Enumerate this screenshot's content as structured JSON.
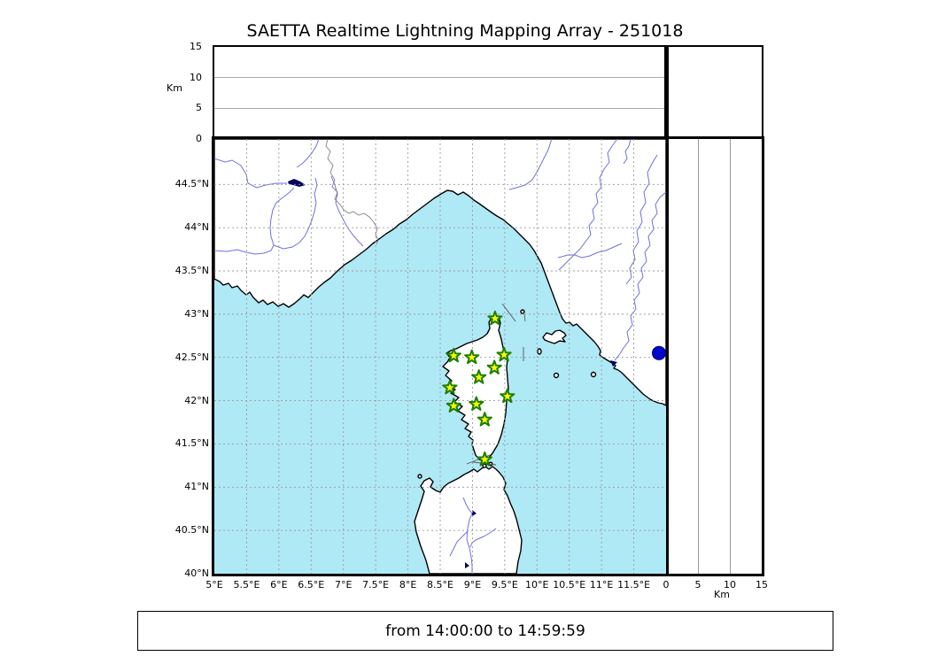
{
  "title": "SAETTA Realtime Lightning Mapping Array - 251018",
  "footer": "from 14:00:00 to 14:59:59",
  "altitude_axis": {
    "unit_label": "Km",
    "ticks": [
      0,
      5,
      10,
      15
    ],
    "max": 15
  },
  "map": {
    "lon_range": [
      5.0,
      12.0
    ],
    "lat_range": [
      40.0,
      45.025
    ],
    "lon_ticks": [
      {
        "value": 5.0,
        "label": "5°E"
      },
      {
        "value": 5.5,
        "label": "5.5°E"
      },
      {
        "value": 6.0,
        "label": "6°E"
      },
      {
        "value": 6.5,
        "label": "6.5°E"
      },
      {
        "value": 7.0,
        "label": "7°E"
      },
      {
        "value": 7.5,
        "label": "7.5°E"
      },
      {
        "value": 8.0,
        "label": "8°E"
      },
      {
        "value": 8.5,
        "label": "8.5°E"
      },
      {
        "value": 9.0,
        "label": "9°E"
      },
      {
        "value": 9.5,
        "label": "9.5°E"
      },
      {
        "value": 10.0,
        "label": "10°E"
      },
      {
        "value": 10.5,
        "label": "10.5°E"
      },
      {
        "value": 11.0,
        "label": "11°E"
      },
      {
        "value": 11.5,
        "label": "11.5°E"
      }
    ],
    "lat_ticks": [
      {
        "value": 44.5,
        "label": "44.5°N"
      },
      {
        "value": 44.0,
        "label": "44°N"
      },
      {
        "value": 43.5,
        "label": "43.5°N"
      },
      {
        "value": 43.0,
        "label": "43°N"
      },
      {
        "value": 42.5,
        "label": "42.5°N"
      },
      {
        "value": 42.0,
        "label": "42°N"
      },
      {
        "value": 41.5,
        "label": "41.5°N"
      },
      {
        "value": 41.0,
        "label": "41°N"
      },
      {
        "value": 40.5,
        "label": "40.5°N"
      },
      {
        "value": 40.0,
        "label": "40°N"
      }
    ],
    "stations": [
      {
        "lon": 9.35,
        "lat": 42.95
      },
      {
        "lon": 8.71,
        "lat": 42.52
      },
      {
        "lon": 8.99,
        "lat": 42.5
      },
      {
        "lon": 9.49,
        "lat": 42.53
      },
      {
        "lon": 9.34,
        "lat": 42.38
      },
      {
        "lon": 9.1,
        "lat": 42.27
      },
      {
        "lon": 8.65,
        "lat": 42.15
      },
      {
        "lon": 9.54,
        "lat": 42.05
      },
      {
        "lon": 8.71,
        "lat": 41.94
      },
      {
        "lon": 9.06,
        "lat": 41.96
      },
      {
        "lon": 9.19,
        "lat": 41.78
      },
      {
        "lon": 9.19,
        "lat": 41.32
      }
    ],
    "event_dot": {
      "lon": 11.89,
      "lat": 42.55
    },
    "colors": {
      "sea": "#afe9f5",
      "land": "#ffffff",
      "coast": "#000000",
      "river": "#7070e0",
      "grid": "#999999",
      "country_border": "#808080",
      "lake": "#000060",
      "star_fill": "#ffff00",
      "star_edge": "#1e7e00",
      "dot_fill": "#0008cc",
      "dot_edge": "#000080"
    }
  }
}
